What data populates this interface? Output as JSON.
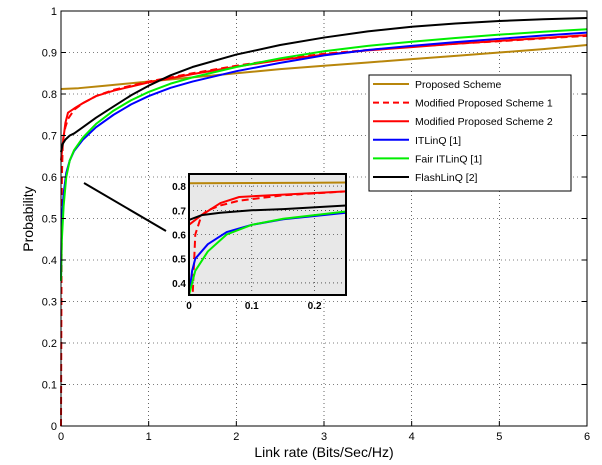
{
  "chart_data": {
    "type": "line",
    "xlabel": "Link rate (Bits/Sec/Hz)",
    "ylabel": "Probability",
    "xlim": [
      0,
      6
    ],
    "ylim": [
      0,
      1
    ],
    "xticks": [
      0,
      1,
      2,
      3,
      4,
      5,
      6
    ],
    "yticks": [
      0,
      0.1,
      0.2,
      0.3,
      0.4,
      0.5,
      0.6,
      0.7,
      0.8,
      0.9,
      1
    ],
    "grid": true,
    "legend_position": "right",
    "series": [
      {
        "name": "Proposed Scheme",
        "color": "#b8860b",
        "dash": "solid",
        "x": [
          0,
          0.2,
          0.5,
          1,
          1.5,
          2,
          2.5,
          3,
          3.5,
          4,
          4.5,
          5,
          5.5,
          6
        ],
        "y": [
          0.812,
          0.814,
          0.82,
          0.83,
          0.84,
          0.85,
          0.86,
          0.868,
          0.876,
          0.884,
          0.892,
          0.9,
          0.908,
          0.918
        ]
      },
      {
        "name": "Modified Proposed Scheme 1",
        "color": "#ff0000",
        "dash": "dashed",
        "x": [
          0,
          0.005,
          0.01,
          0.02,
          0.03,
          0.05,
          0.08,
          0.15,
          0.25,
          0.4,
          0.6,
          0.8,
          1,
          1.5,
          2,
          2.5,
          3,
          3.5,
          4,
          4.5,
          5,
          5.5,
          6
        ],
        "y": [
          0,
          0.3,
          0.6,
          0.68,
          0.7,
          0.72,
          0.74,
          0.762,
          0.778,
          0.795,
          0.81,
          0.82,
          0.83,
          0.85,
          0.868,
          0.884,
          0.897,
          0.906,
          0.914,
          0.921,
          0.927,
          0.934,
          0.94
        ]
      },
      {
        "name": "Modified Proposed Scheme 2",
        "color": "#ff0000",
        "dash": "solid",
        "x": [
          0,
          0.02,
          0.05,
          0.08,
          0.15,
          0.25,
          0.4,
          0.6,
          0.8,
          1,
          1.5,
          2,
          2.5,
          3,
          3.5,
          4,
          4.5,
          5,
          5.5,
          6
        ],
        "y": [
          0.64,
          0.68,
          0.73,
          0.755,
          0.765,
          0.778,
          0.795,
          0.808,
          0.818,
          0.828,
          0.848,
          0.866,
          0.882,
          0.895,
          0.905,
          0.913,
          0.921,
          0.928,
          0.935,
          0.942
        ]
      },
      {
        "name": "ITLinQ [1]",
        "color": "#0000ff",
        "dash": "solid",
        "x": [
          0,
          0.005,
          0.01,
          0.03,
          0.06,
          0.1,
          0.15,
          0.25,
          0.4,
          0.6,
          0.8,
          1,
          1.25,
          1.5,
          2,
          2.5,
          3,
          3.5,
          4,
          4.5,
          5,
          5.5,
          6
        ],
        "y": [
          0.35,
          0.45,
          0.5,
          0.56,
          0.61,
          0.64,
          0.663,
          0.69,
          0.72,
          0.75,
          0.775,
          0.795,
          0.815,
          0.83,
          0.855,
          0.875,
          0.893,
          0.906,
          0.916,
          0.925,
          0.933,
          0.941,
          0.948
        ]
      },
      {
        "name": "Fair ITLinQ [1]",
        "color": "#00ee00",
        "dash": "solid",
        "x": [
          0,
          0.005,
          0.01,
          0.03,
          0.06,
          0.1,
          0.15,
          0.25,
          0.4,
          0.6,
          0.8,
          1,
          1.25,
          1.5,
          2,
          2.5,
          3,
          3.5,
          4,
          4.5,
          5,
          5.5,
          6
        ],
        "y": [
          0.35,
          0.4,
          0.45,
          0.53,
          0.6,
          0.64,
          0.665,
          0.695,
          0.728,
          0.76,
          0.785,
          0.805,
          0.825,
          0.84,
          0.865,
          0.886,
          0.903,
          0.916,
          0.926,
          0.935,
          0.943,
          0.95,
          0.956
        ]
      },
      {
        "name": "FlashLinQ [2]",
        "color": "#000000",
        "dash": "solid",
        "x": [
          0,
          0.02,
          0.05,
          0.1,
          0.15,
          0.25,
          0.4,
          0.6,
          0.8,
          1,
          1.25,
          1.5,
          2,
          2.5,
          3,
          3.5,
          4,
          4.5,
          5,
          5.5,
          6
        ],
        "y": [
          0.66,
          0.68,
          0.69,
          0.7,
          0.705,
          0.72,
          0.743,
          0.77,
          0.797,
          0.82,
          0.845,
          0.865,
          0.895,
          0.918,
          0.936,
          0.951,
          0.962,
          0.97,
          0.976,
          0.98,
          0.983
        ]
      }
    ],
    "inset": {
      "xlim": [
        0,
        0.25
      ],
      "ylim": [
        0.35,
        0.85
      ],
      "xticks": [
        0,
        0.1,
        0.2
      ],
      "xtick_labels": [
        "0",
        "0.1",
        "0.2"
      ],
      "yticks": [
        0.4,
        0.5,
        0.6,
        0.7,
        0.8
      ],
      "ytick_labels": [
        "0.4",
        "0.5",
        "0.6",
        "0.7",
        "0.8"
      ],
      "background": "#e8e8e8",
      "pointer_target": {
        "x": 0.25,
        "y": 0.57
      }
    }
  }
}
